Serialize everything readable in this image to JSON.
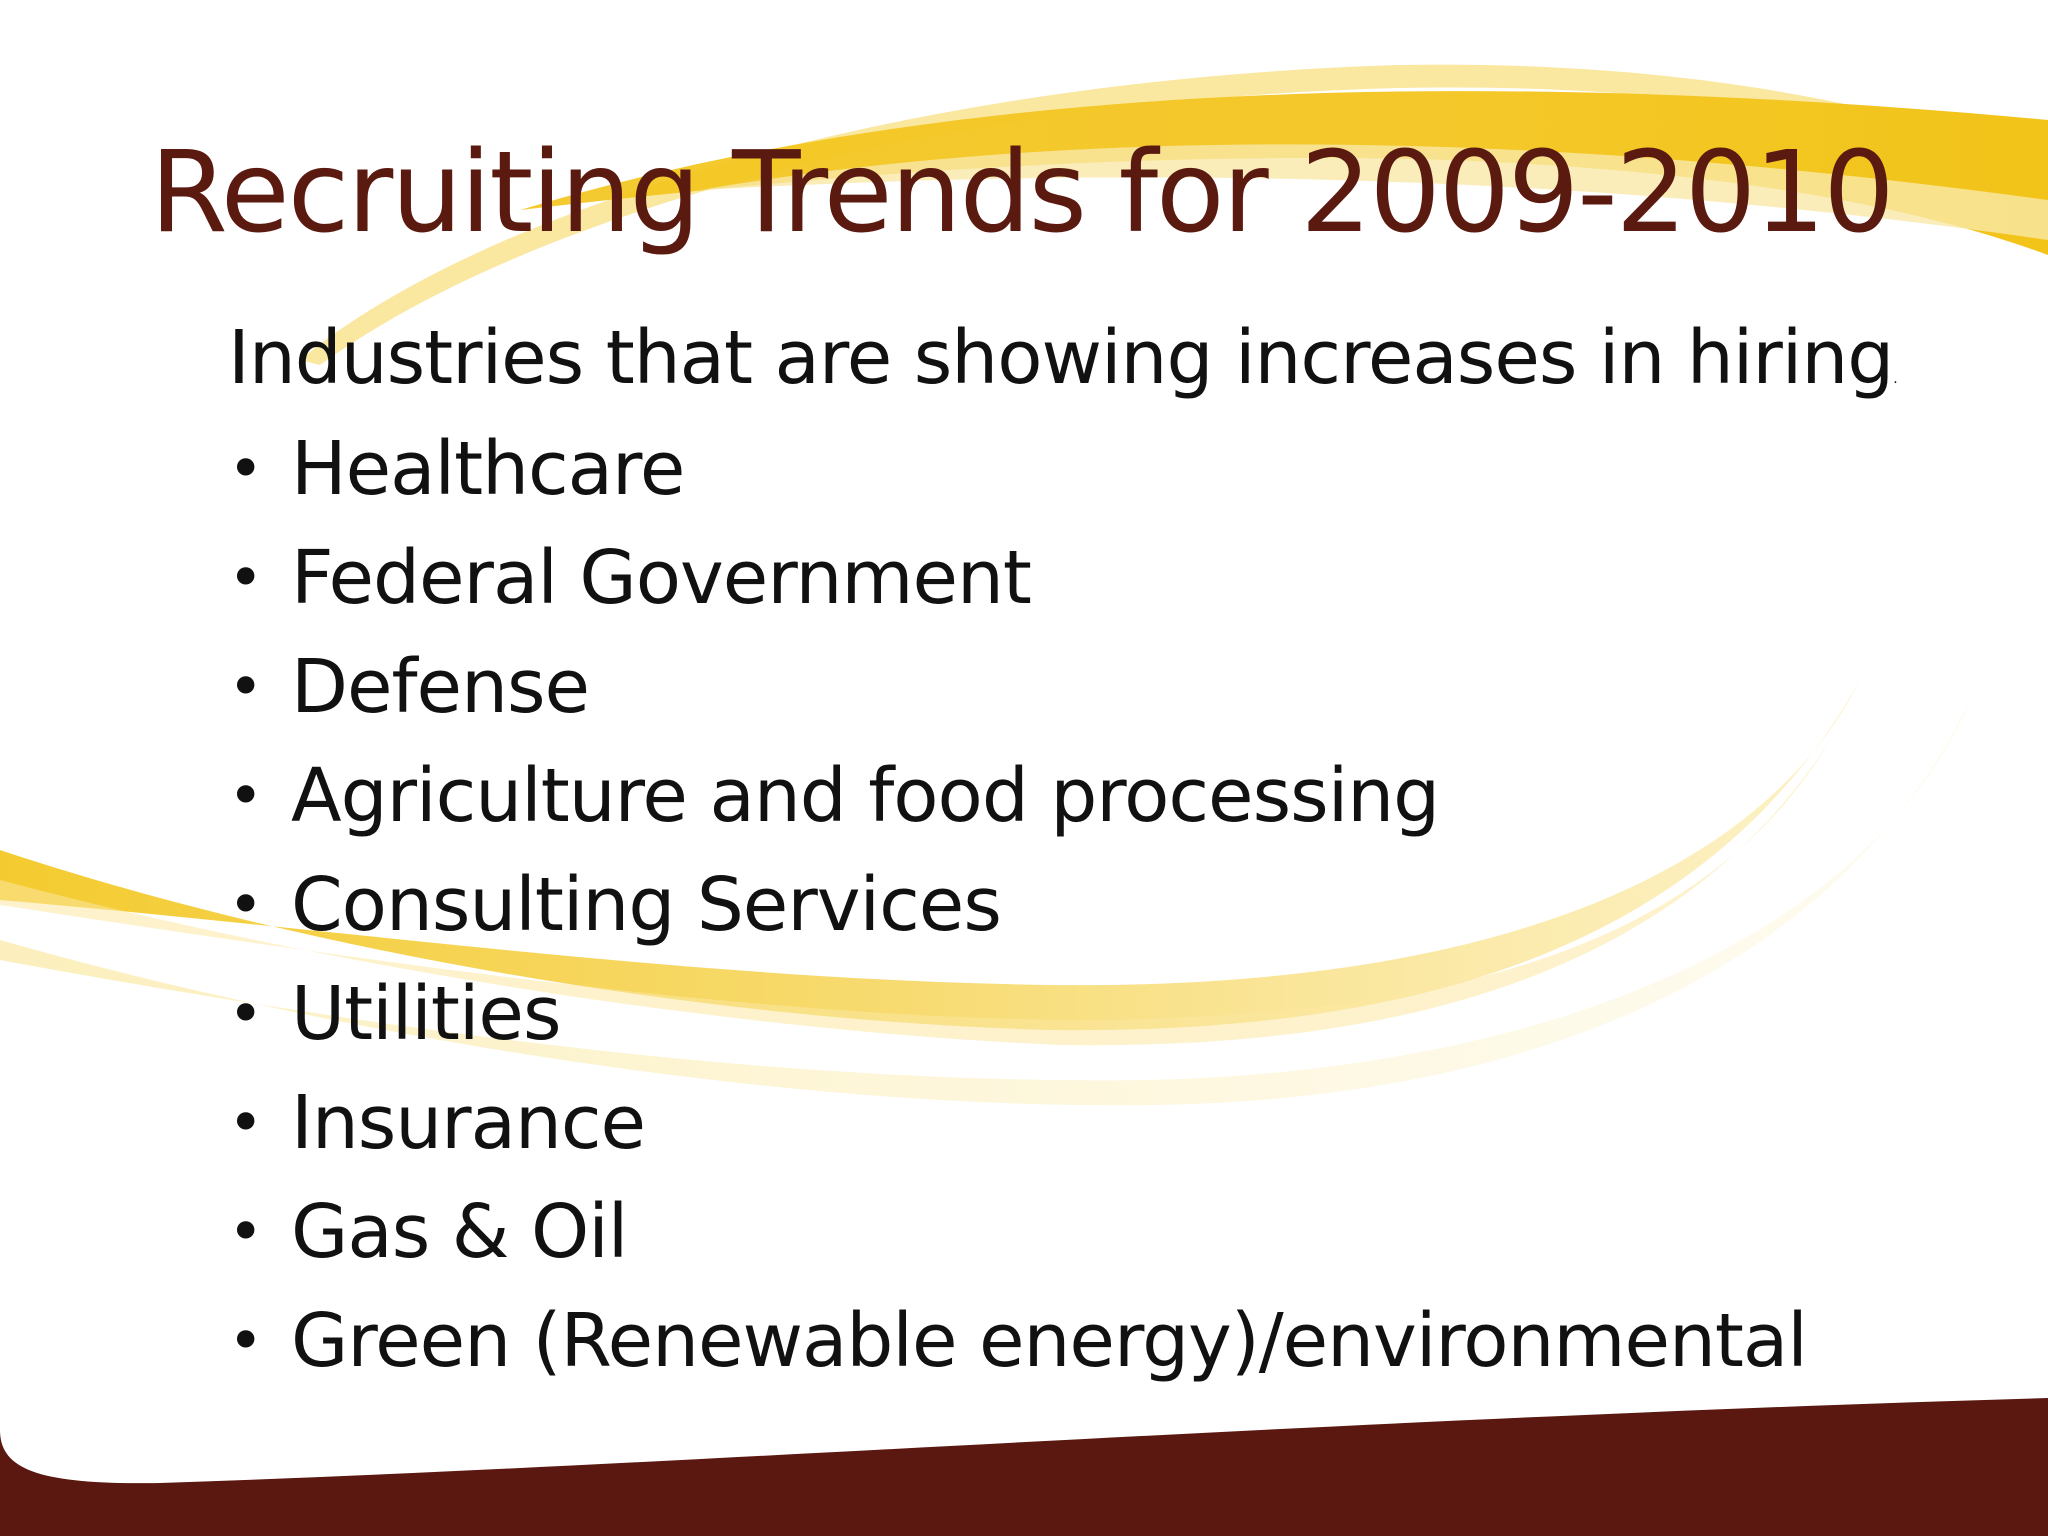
{
  "slide": {
    "title": "Recruiting Trends for 2009-2010",
    "intro": "Industries that are showing increases in hiring",
    "intro_trailing": ".",
    "bullet_glyph": "•",
    "items": [
      "Healthcare",
      "Federal Government",
      "Defense",
      "Agriculture and food processing",
      "Consulting Services",
      "Utilities",
      "Insurance",
      "Gas & Oil",
      "Green (Renewable energy)/environmental"
    ]
  },
  "colors": {
    "title": "#5b1a10",
    "text": "#111111",
    "swoosh_gold": "#f2c419",
    "swoosh_light": "#f8e27c",
    "footer_band": "#5a1810"
  }
}
